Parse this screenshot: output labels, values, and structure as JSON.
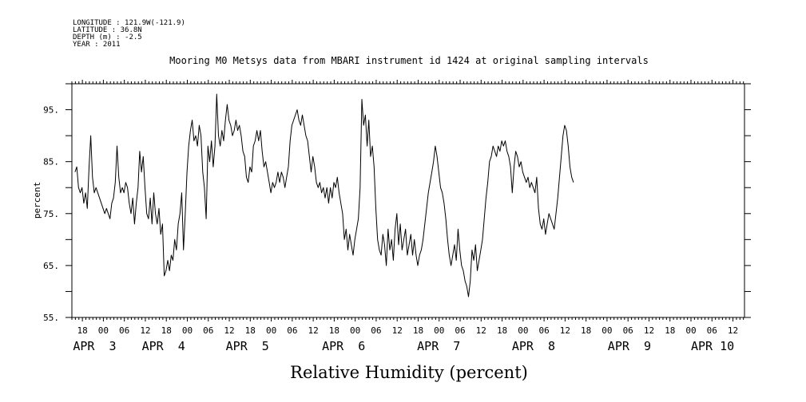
{
  "header": {
    "meta_lines": [
      "LONGITUDE : 121.9W(-121.9)",
      "LATITUDE : 36.8N",
      "DEPTH (m) : -2.5",
      "YEAR : 2011"
    ]
  },
  "chart_data": {
    "type": "line",
    "title": "Mooring M0 Metsys data from MBARI instrument id 1424 at original sampling intervals",
    "xlabel": "Relative Humidity (percent)",
    "ylabel": "percent",
    "ylim": [
      55,
      100
    ],
    "yticks": [
      55,
      65,
      75,
      85,
      95
    ],
    "xlim": [
      15.0,
      207.3
    ],
    "x_unit": "hours since 2011-04-03 00:00",
    "xtick_labels": [
      {
        "x": 18,
        "label": "18"
      },
      {
        "x": 24,
        "label": "00"
      },
      {
        "x": 30,
        "label": "06"
      },
      {
        "x": 36,
        "label": "12"
      },
      {
        "x": 42,
        "label": "18"
      },
      {
        "x": 48,
        "label": "00"
      },
      {
        "x": 54,
        "label": "06"
      },
      {
        "x": 60,
        "label": "12"
      },
      {
        "x": 66,
        "label": "18"
      },
      {
        "x": 72,
        "label": "00"
      },
      {
        "x": 78,
        "label": "06"
      },
      {
        "x": 84,
        "label": "12"
      },
      {
        "x": 90,
        "label": "18"
      },
      {
        "x": 96,
        "label": "00"
      },
      {
        "x": 102,
        "label": "06"
      },
      {
        "x": 108,
        "label": "12"
      },
      {
        "x": 114,
        "label": "18"
      },
      {
        "x": 120,
        "label": "00"
      },
      {
        "x": 126,
        "label": "06"
      },
      {
        "x": 132,
        "label": "12"
      },
      {
        "x": 138,
        "label": "18"
      },
      {
        "x": 144,
        "label": "00"
      },
      {
        "x": 150,
        "label": "06"
      },
      {
        "x": 156,
        "label": "12"
      },
      {
        "x": 162,
        "label": "18"
      },
      {
        "x": 168,
        "label": "00"
      },
      {
        "x": 174,
        "label": "06"
      },
      {
        "x": 180,
        "label": "12"
      },
      {
        "x": 186,
        "label": "18"
      },
      {
        "x": 192,
        "label": "00"
      },
      {
        "x": 198,
        "label": "06"
      },
      {
        "x": 204,
        "label": "12"
      }
    ],
    "day_labels": [
      {
        "x": 15.3,
        "label": "APR  3"
      },
      {
        "x": 35.0,
        "label": "APR  4"
      },
      {
        "x": 59.0,
        "label": "APR  5"
      },
      {
        "x": 86.5,
        "label": "APR  6"
      },
      {
        "x": 113.7,
        "label": "APR  7"
      },
      {
        "x": 140.8,
        "label": "APR  8"
      },
      {
        "x": 168.2,
        "label": "APR  9"
      },
      {
        "x": 192.0,
        "label": "APR 10"
      }
    ],
    "grid": false,
    "series": [
      {
        "color": "#000000",
        "points": [
          [
            15.9,
            83
          ],
          [
            16.4,
            84
          ],
          [
            16.9,
            80
          ],
          [
            17.4,
            79
          ],
          [
            17.9,
            80
          ],
          [
            18.4,
            77
          ],
          [
            18.9,
            79
          ],
          [
            19.4,
            76
          ],
          [
            19.9,
            84
          ],
          [
            20.4,
            90
          ],
          [
            20.9,
            82
          ],
          [
            21.4,
            79
          ],
          [
            21.9,
            80
          ],
          [
            22.4,
            79
          ],
          [
            22.9,
            78
          ],
          [
            23.4,
            77
          ],
          [
            23.9,
            76
          ],
          [
            24.4,
            75
          ],
          [
            24.9,
            76
          ],
          [
            25.4,
            75
          ],
          [
            25.9,
            74
          ],
          [
            26.4,
            77
          ],
          [
            26.9,
            78
          ],
          [
            27.4,
            81
          ],
          [
            27.9,
            88
          ],
          [
            28.4,
            82
          ],
          [
            28.9,
            79
          ],
          [
            29.4,
            80
          ],
          [
            29.9,
            79
          ],
          [
            30.4,
            81
          ],
          [
            30.9,
            80
          ],
          [
            31.4,
            77
          ],
          [
            31.9,
            75
          ],
          [
            32.4,
            78
          ],
          [
            32.9,
            73
          ],
          [
            33.4,
            77
          ],
          [
            33.9,
            80
          ],
          [
            34.4,
            87
          ],
          [
            34.9,
            83
          ],
          [
            35.4,
            86
          ],
          [
            35.9,
            80
          ],
          [
            36.4,
            75
          ],
          [
            36.9,
            74
          ],
          [
            37.4,
            78
          ],
          [
            37.9,
            73
          ],
          [
            38.4,
            79
          ],
          [
            38.9,
            75
          ],
          [
            39.4,
            73
          ],
          [
            39.9,
            76
          ],
          [
            40.4,
            71
          ],
          [
            40.9,
            73
          ],
          [
            41.4,
            63
          ],
          [
            41.9,
            64
          ],
          [
            42.4,
            66
          ],
          [
            42.9,
            64
          ],
          [
            43.4,
            67
          ],
          [
            43.9,
            66
          ],
          [
            44.4,
            70
          ],
          [
            44.9,
            68
          ],
          [
            45.4,
            73
          ],
          [
            45.9,
            75
          ],
          [
            46.4,
            79
          ],
          [
            46.9,
            68
          ],
          [
            47.4,
            75
          ],
          [
            47.9,
            83
          ],
          [
            48.4,
            88
          ],
          [
            48.9,
            91
          ],
          [
            49.4,
            93
          ],
          [
            49.9,
            89
          ],
          [
            50.4,
            90
          ],
          [
            50.9,
            88
          ],
          [
            51.4,
            92
          ],
          [
            51.9,
            90
          ],
          [
            52.4,
            83
          ],
          [
            52.9,
            80
          ],
          [
            53.4,
            74
          ],
          [
            53.9,
            88
          ],
          [
            54.4,
            85
          ],
          [
            54.9,
            89
          ],
          [
            55.4,
            84
          ],
          [
            55.9,
            88
          ],
          [
            56.4,
            98
          ],
          [
            56.9,
            90
          ],
          [
            57.4,
            88
          ],
          [
            57.9,
            91
          ],
          [
            58.4,
            89
          ],
          [
            58.9,
            93
          ],
          [
            59.4,
            96
          ],
          [
            59.9,
            93
          ],
          [
            60.4,
            92
          ],
          [
            60.9,
            90
          ],
          [
            61.4,
            91
          ],
          [
            61.9,
            93
          ],
          [
            62.4,
            91
          ],
          [
            62.9,
            92
          ],
          [
            63.4,
            90
          ],
          [
            63.9,
            87
          ],
          [
            64.4,
            86
          ],
          [
            64.9,
            82
          ],
          [
            65.4,
            81
          ],
          [
            65.9,
            84
          ],
          [
            66.4,
            83
          ],
          [
            66.9,
            88
          ],
          [
            67.4,
            89
          ],
          [
            67.9,
            91
          ],
          [
            68.4,
            89
          ],
          [
            68.9,
            91
          ],
          [
            69.4,
            87
          ],
          [
            69.9,
            84
          ],
          [
            70.4,
            85
          ],
          [
            70.9,
            83
          ],
          [
            71.4,
            81
          ],
          [
            71.9,
            79
          ],
          [
            72.4,
            81
          ],
          [
            72.9,
            80
          ],
          [
            73.4,
            81
          ],
          [
            73.9,
            83
          ],
          [
            74.4,
            81
          ],
          [
            74.9,
            83
          ],
          [
            75.4,
            82
          ],
          [
            75.9,
            80
          ],
          [
            76.4,
            82
          ],
          [
            76.9,
            84
          ],
          [
            77.4,
            89
          ],
          [
            77.9,
            92
          ],
          [
            78.4,
            93
          ],
          [
            78.9,
            94
          ],
          [
            79.4,
            95
          ],
          [
            79.9,
            93
          ],
          [
            80.4,
            92
          ],
          [
            80.9,
            94
          ],
          [
            81.4,
            92
          ],
          [
            81.9,
            90
          ],
          [
            82.4,
            89
          ],
          [
            82.9,
            86
          ],
          [
            83.4,
            83
          ],
          [
            83.9,
            86
          ],
          [
            84.4,
            84
          ],
          [
            84.9,
            81
          ],
          [
            85.4,
            80
          ],
          [
            85.9,
            81
          ],
          [
            86.4,
            79
          ],
          [
            86.9,
            80
          ],
          [
            87.4,
            78
          ],
          [
            87.9,
            80
          ],
          [
            88.4,
            77
          ],
          [
            88.9,
            80
          ],
          [
            89.4,
            78
          ],
          [
            89.9,
            81
          ],
          [
            90.4,
            80
          ],
          [
            90.9,
            82
          ],
          [
            91.4,
            79
          ],
          [
            91.9,
            77
          ],
          [
            92.4,
            75
          ],
          [
            92.9,
            70
          ],
          [
            93.4,
            72
          ],
          [
            93.9,
            68
          ],
          [
            94.4,
            71
          ],
          [
            94.9,
            69
          ],
          [
            95.4,
            67
          ],
          [
            95.9,
            70
          ],
          [
            96.4,
            72
          ],
          [
            96.9,
            74
          ],
          [
            97.4,
            80
          ],
          [
            97.9,
            97
          ],
          [
            98.4,
            92
          ],
          [
            98.9,
            94
          ],
          [
            99.4,
            88
          ],
          [
            99.9,
            93
          ],
          [
            100.4,
            86
          ],
          [
            100.9,
            88
          ],
          [
            101.4,
            84
          ],
          [
            101.9,
            76
          ],
          [
            102.4,
            70
          ],
          [
            102.9,
            68
          ],
          [
            103.4,
            67
          ],
          [
            103.9,
            71
          ],
          [
            104.4,
            69
          ],
          [
            104.9,
            65
          ],
          [
            105.4,
            72
          ],
          [
            105.9,
            68
          ],
          [
            106.4,
            70
          ],
          [
            106.9,
            66
          ],
          [
            107.4,
            72
          ],
          [
            107.9,
            75
          ],
          [
            108.4,
            69
          ],
          [
            108.9,
            73
          ],
          [
            109.4,
            68
          ],
          [
            109.9,
            70
          ],
          [
            110.4,
            72
          ],
          [
            110.9,
            67
          ],
          [
            111.4,
            69
          ],
          [
            111.9,
            71
          ],
          [
            112.4,
            67
          ],
          [
            112.9,
            70
          ],
          [
            113.4,
            67
          ],
          [
            113.9,
            65
          ],
          [
            114.4,
            67
          ],
          [
            114.9,
            68
          ],
          [
            115.4,
            70
          ],
          [
            115.9,
            73
          ],
          [
            116.4,
            76
          ],
          [
            116.9,
            79
          ],
          [
            117.4,
            81
          ],
          [
            117.9,
            83
          ],
          [
            118.4,
            85
          ],
          [
            118.9,
            88
          ],
          [
            119.4,
            86
          ],
          [
            119.9,
            83
          ],
          [
            120.4,
            80
          ],
          [
            120.9,
            79
          ],
          [
            121.4,
            77
          ],
          [
            121.9,
            74
          ],
          [
            122.4,
            70
          ],
          [
            122.9,
            67
          ],
          [
            123.4,
            65
          ],
          [
            123.9,
            67
          ],
          [
            124.4,
            69
          ],
          [
            124.9,
            66
          ],
          [
            125.4,
            72
          ],
          [
            125.9,
            68
          ],
          [
            126.4,
            65
          ],
          [
            126.9,
            64
          ],
          [
            127.4,
            62
          ],
          [
            127.9,
            61
          ],
          [
            128.4,
            59
          ],
          [
            128.9,
            62
          ],
          [
            129.4,
            68
          ],
          [
            129.9,
            66
          ],
          [
            130.4,
            69
          ],
          [
            130.9,
            64
          ],
          [
            131.4,
            66
          ],
          [
            131.9,
            68
          ],
          [
            132.4,
            70
          ],
          [
            132.9,
            74
          ],
          [
            133.4,
            78
          ],
          [
            133.9,
            81
          ],
          [
            134.4,
            85
          ],
          [
            134.9,
            86
          ],
          [
            135.4,
            88
          ],
          [
            135.9,
            87
          ],
          [
            136.4,
            86
          ],
          [
            136.9,
            88
          ],
          [
            137.4,
            87
          ],
          [
            137.9,
            89
          ],
          [
            138.4,
            88
          ],
          [
            138.9,
            89
          ],
          [
            139.4,
            87
          ],
          [
            139.9,
            86
          ],
          [
            140.4,
            84
          ],
          [
            140.9,
            79
          ],
          [
            141.4,
            84
          ],
          [
            141.9,
            87
          ],
          [
            142.4,
            86
          ],
          [
            142.9,
            84
          ],
          [
            143.4,
            85
          ],
          [
            143.9,
            83
          ],
          [
            144.4,
            82
          ],
          [
            144.9,
            81
          ],
          [
            145.4,
            82
          ],
          [
            145.9,
            80
          ],
          [
            146.4,
            81
          ],
          [
            146.9,
            80
          ],
          [
            147.4,
            79
          ],
          [
            147.9,
            82
          ],
          [
            148.4,
            76
          ],
          [
            148.9,
            73
          ],
          [
            149.4,
            72
          ],
          [
            149.9,
            74
          ],
          [
            150.4,
            71
          ],
          [
            150.9,
            73
          ],
          [
            151.4,
            75
          ],
          [
            151.9,
            74
          ],
          [
            152.4,
            73
          ],
          [
            152.9,
            72
          ],
          [
            153.4,
            75
          ],
          [
            153.9,
            78
          ],
          [
            154.4,
            82
          ],
          [
            154.9,
            86
          ],
          [
            155.4,
            90
          ],
          [
            155.9,
            92
          ],
          [
            156.4,
            91
          ],
          [
            156.9,
            88
          ],
          [
            157.4,
            84
          ],
          [
            157.9,
            82
          ],
          [
            158.4,
            81
          ]
        ]
      }
    ]
  }
}
